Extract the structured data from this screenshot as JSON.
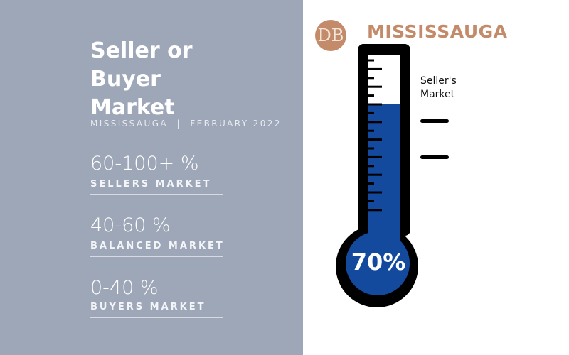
{
  "title": "Seller or Buyer Market",
  "subtitle": "MISSISSAUGA  |  FEBRUARY 2022",
  "ranges": [
    {
      "range": "60-100+ %",
      "label": "SELLERS MARKET"
    },
    {
      "range": "40-60 %",
      "label": "BALANCED MARKET"
    },
    {
      "range": "0-40 %",
      "label": "BUYERS MARKET"
    }
  ],
  "brand": {
    "city": "MISSISSAUGA",
    "logo_letters": "DB"
  },
  "thermometer": {
    "value_label": "70%",
    "fill_percent": 70,
    "annotation": "Seller's Market",
    "fill_color": "#134a9e",
    "panel_color": "#9ea7b8",
    "accent_color": "#c48b6a"
  }
}
